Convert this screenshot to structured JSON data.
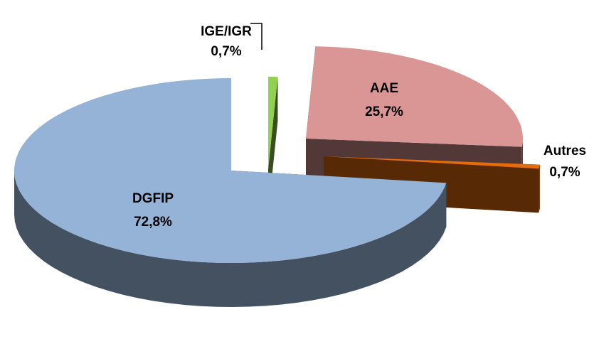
{
  "chart_data": {
    "type": "pie3d",
    "categories": [
      "IGE/IGR",
      "AAE",
      "Autres",
      "DGFIP"
    ],
    "values": [
      0.7,
      25.7,
      0.7,
      72.8
    ],
    "value_labels": [
      "0,7%",
      "25,7%",
      "0,7%",
      "72,8%"
    ],
    "colors": [
      "#92d050",
      "#d99694",
      "#e46c0a",
      "#95b3d7"
    ]
  }
}
